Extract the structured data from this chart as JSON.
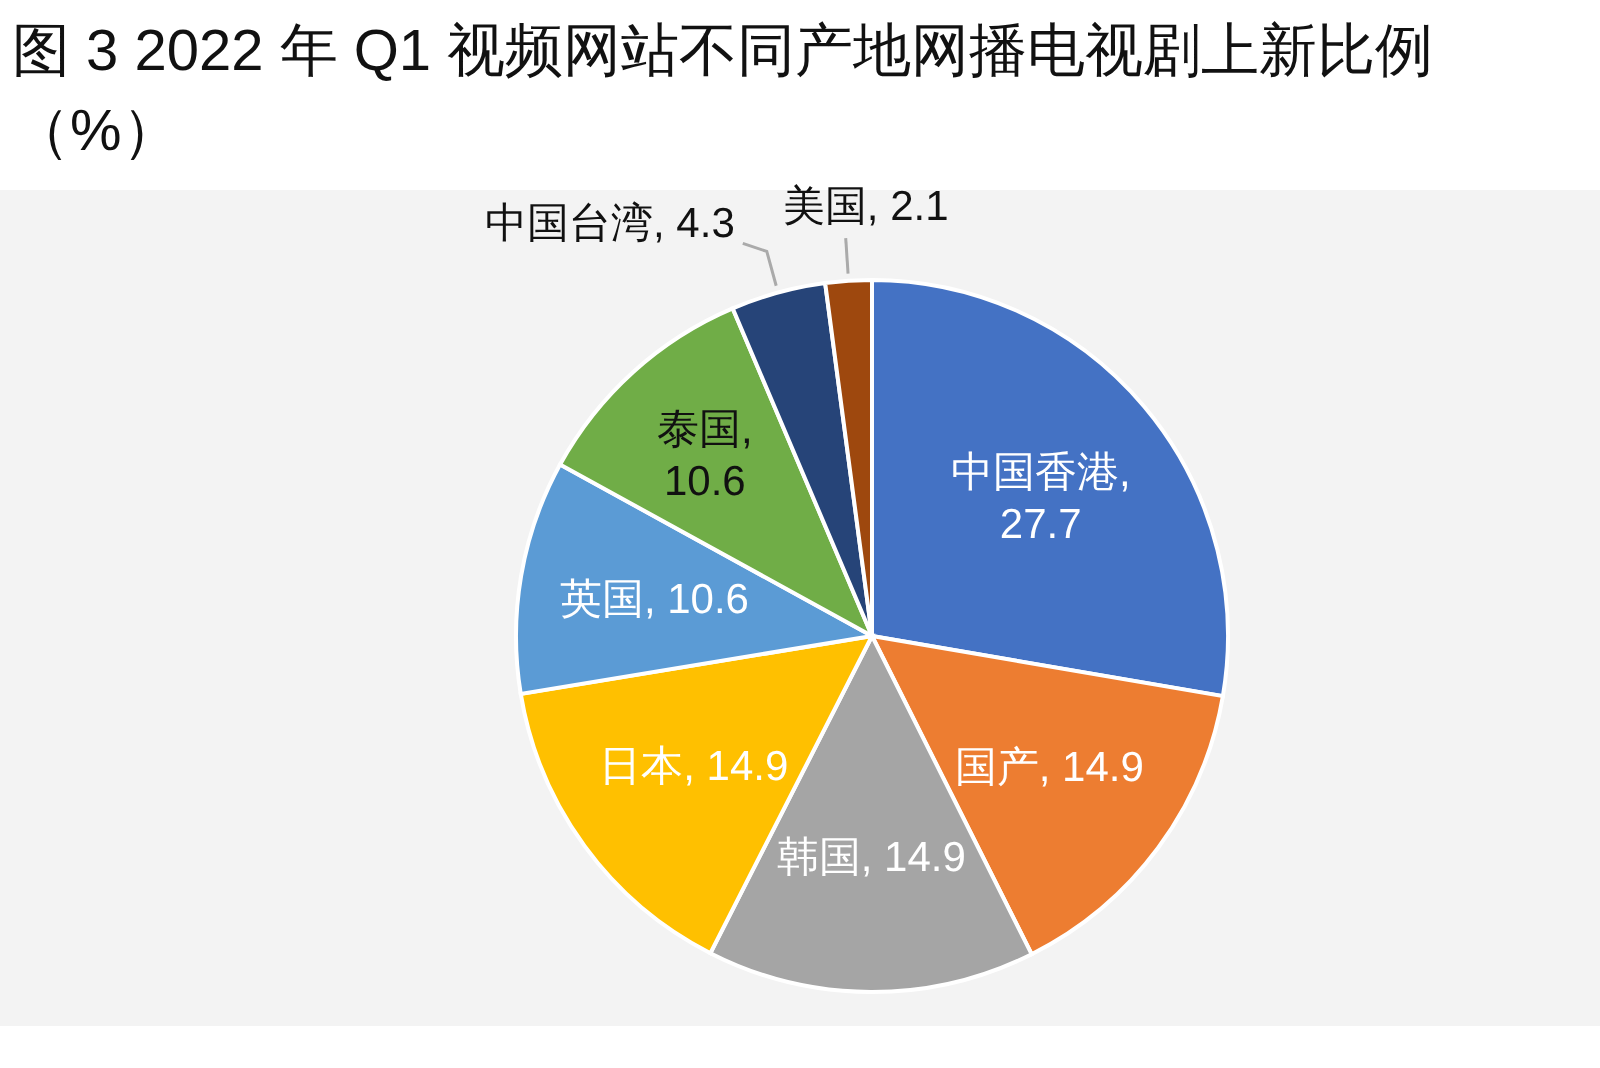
{
  "chart_data": {
    "type": "pie",
    "title": "图 3 2022 年 Q1 视频网站不同产地网播电视剧上新比例（%）",
    "categories": [
      "中国香港",
      "国产",
      "韩国",
      "日本",
      "英国",
      "泰国",
      "中国台湾",
      "美国"
    ],
    "values": [
      27.7,
      14.9,
      14.9,
      14.9,
      10.6,
      10.6,
      4.3,
      2.1
    ],
    "colors": [
      "#4472c4",
      "#ed7d31",
      "#a5a5a5",
      "#ffc000",
      "#5b9bd5",
      "#70ad47",
      "#264478",
      "#9e480e"
    ],
    "value_labels": [
      ", 27.7",
      ", 14.9",
      ", 14.9",
      ", 14.9",
      ", 10.6",
      ", 10.6",
      ", 4.3",
      ", 2.1"
    ]
  }
}
